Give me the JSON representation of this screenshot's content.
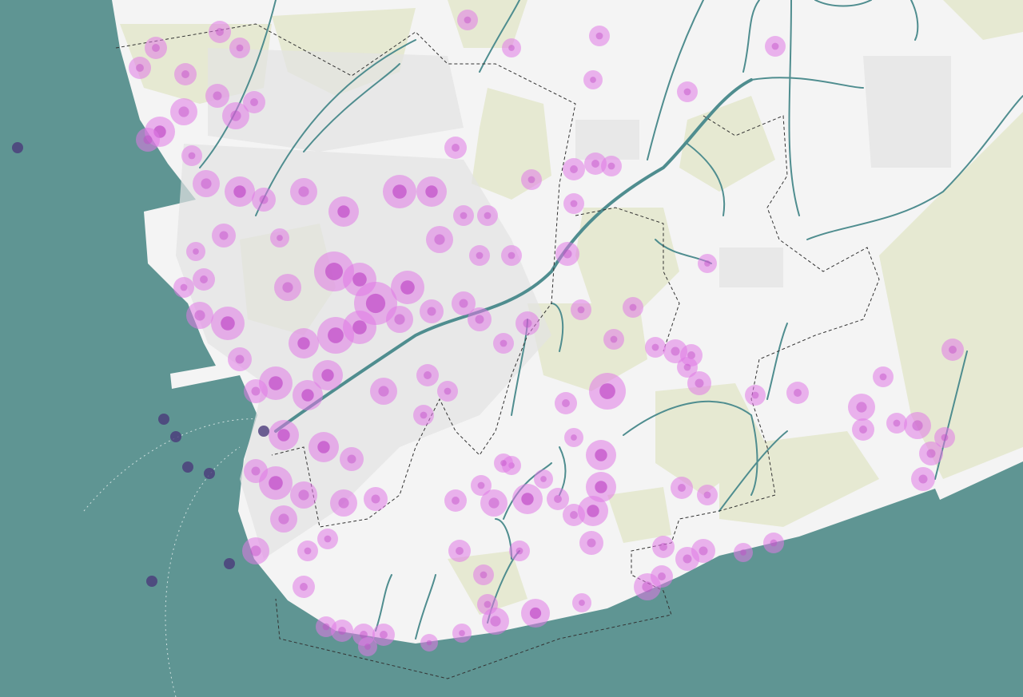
{
  "map": {
    "colors": {
      "sea": "#5f9593",
      "land": "#f4f4f4",
      "urban": "#e2e2e2",
      "green": "#e6e9d2",
      "river": "#4f8d8f",
      "boundary": "#333333",
      "hotspot": "#e07ae6",
      "hotspot_core": "#c04bc8",
      "offshore_point": "#4a3a7a"
    }
  }
}
